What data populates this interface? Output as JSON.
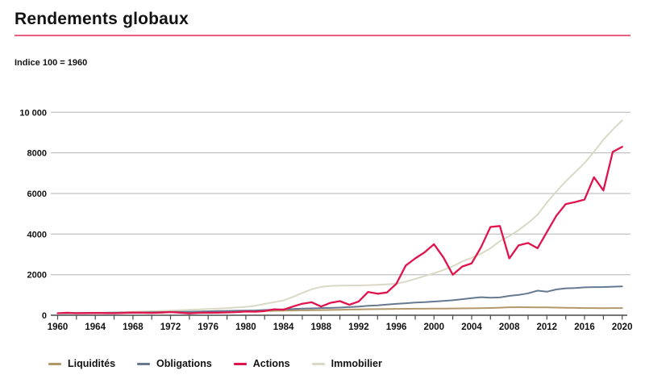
{
  "header": {
    "title": "Rendements globaux",
    "subtitle": "Indice 100 = 1960"
  },
  "colors": {
    "title_rule": "#ed5f7f",
    "axis": "#4a4a4a",
    "grid": "#b3b3b3",
    "text": "#121212"
  },
  "chart_data": {
    "type": "line",
    "title": "Rendements globaux",
    "subtitle": "Indice 100 = 1960",
    "xlabel": "",
    "ylabel": "",
    "xlim": [
      1960,
      2020
    ],
    "ylim": [
      0,
      10000
    ],
    "grid": "horizontal",
    "legend_position": "bottom",
    "y_ticks": [
      0,
      2000,
      4000,
      6000,
      8000,
      10000
    ],
    "y_tick_labels": [
      "0",
      "2000",
      "4000",
      "6000",
      "8000",
      "10 000"
    ],
    "x_label_years": [
      1960,
      1964,
      1968,
      1972,
      1976,
      1980,
      1984,
      1988,
      1992,
      1996,
      2000,
      2004,
      2008,
      2012,
      2016,
      2020
    ],
    "x_minor_tick_step": 2,
    "x": [
      1960,
      1961,
      1962,
      1963,
      1964,
      1965,
      1966,
      1967,
      1968,
      1969,
      1970,
      1971,
      1972,
      1973,
      1974,
      1975,
      1976,
      1977,
      1978,
      1979,
      1980,
      1981,
      1982,
      1983,
      1984,
      1985,
      1986,
      1987,
      1988,
      1989,
      1990,
      1991,
      1992,
      1993,
      1994,
      1995,
      1996,
      1997,
      1998,
      1999,
      2000,
      2001,
      2002,
      2003,
      2004,
      2005,
      2006,
      2007,
      2008,
      2009,
      2010,
      2011,
      2012,
      2013,
      2014,
      2015,
      2016,
      2017,
      2018,
      2019,
      2020
    ],
    "series": [
      {
        "name": "Liquidités",
        "color": "#b3986c",
        "values": [
          100,
          103,
          106,
          109,
          112,
          116,
          120,
          124,
          128,
          133,
          139,
          144,
          149,
          156,
          164,
          170,
          175,
          179,
          183,
          188,
          196,
          205,
          213,
          220,
          227,
          235,
          242,
          248,
          254,
          262,
          272,
          282,
          291,
          298,
          303,
          308,
          312,
          316,
          320,
          323,
          327,
          331,
          334,
          337,
          340,
          345,
          358,
          375,
          392,
          396,
          394,
          390,
          385,
          378,
          368,
          360,
          355,
          352,
          351,
          352,
          355
        ]
      },
      {
        "name": "Obligations",
        "color": "#66798f",
        "values": [
          100,
          104,
          108,
          112,
          116,
          121,
          125,
          130,
          136,
          140,
          146,
          154,
          162,
          168,
          174,
          184,
          196,
          206,
          214,
          222,
          230,
          240,
          258,
          276,
          292,
          310,
          328,
          338,
          352,
          362,
          376,
          400,
          430,
          470,
          490,
          530,
          560,
          590,
          625,
          645,
          675,
          705,
          740,
          790,
          845,
          890,
          865,
          880,
          955,
          1000,
          1080,
          1210,
          1160,
          1270,
          1325,
          1340,
          1375,
          1385,
          1390,
          1405,
          1420
        ]
      },
      {
        "name": "Actions",
        "color": "#e0144d",
        "values": [
          100,
          122,
          100,
          108,
          116,
          108,
          98,
          115,
          130,
          126,
          115,
          130,
          158,
          128,
          90,
          118,
          128,
          126,
          138,
          155,
          185,
          175,
          205,
          295,
          275,
          430,
          570,
          640,
          430,
          610,
          695,
          515,
          680,
          1150,
          1060,
          1120,
          1550,
          2450,
          2800,
          3100,
          3500,
          2850,
          2000,
          2400,
          2560,
          3350,
          4350,
          4400,
          2800,
          3450,
          3560,
          3300,
          4100,
          4900,
          5480,
          5580,
          5700,
          6800,
          6150,
          8050,
          8300
        ]
      },
      {
        "name": "Immobilier",
        "color": "#d9d9c6",
        "values": [
          100,
          106,
          113,
          120,
          128,
          137,
          147,
          158,
          170,
          183,
          197,
          213,
          230,
          249,
          268,
          287,
          308,
          330,
          354,
          380,
          412,
          470,
          560,
          645,
          730,
          900,
          1100,
          1280,
          1400,
          1445,
          1460,
          1465,
          1470,
          1480,
          1500,
          1525,
          1555,
          1655,
          1790,
          1930,
          2070,
          2230,
          2410,
          2650,
          2830,
          3030,
          3300,
          3650,
          3900,
          4200,
          4550,
          4950,
          5550,
          6100,
          6600,
          7050,
          7500,
          8050,
          8650,
          9150,
          9600
        ]
      }
    ]
  }
}
